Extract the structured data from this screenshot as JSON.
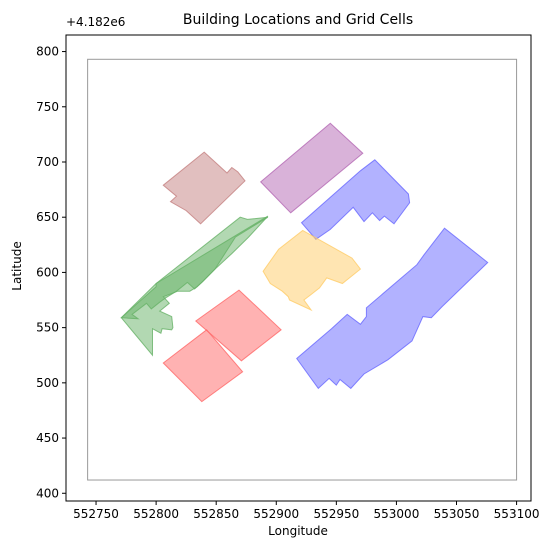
{
  "chart_data": {
    "type": "map",
    "title": "Building Locations and Grid Cells",
    "xlabel": "Longitude",
    "ylabel": "Latitude",
    "y_offset_label": "+4.182e6",
    "xlim": [
      552725,
      553112
    ],
    "ylim": [
      4182393,
      4182815
    ],
    "y_offset": 4182000,
    "x_ticks": [
      552750,
      552800,
      552850,
      552900,
      552950,
      553000,
      553050,
      553100
    ],
    "y_ticks": [
      400,
      450,
      500,
      550,
      600,
      650,
      700,
      750,
      800
    ],
    "grid_boundary": {
      "x": [
        552743,
        553100
      ],
      "y": [
        4182412,
        4182793
      ],
      "color": "#999999"
    },
    "buildings": [
      {
        "name": "green-building",
        "color": "#66b266",
        "polygon": [
          [
            552771,
            4182559
          ],
          [
            552800,
            4182587
          ],
          [
            552800,
            4182590
          ],
          [
            552893,
            4182651
          ],
          [
            552877,
            4182632
          ],
          [
            552863,
            4182617
          ],
          [
            552849,
            4182603
          ],
          [
            552838,
            4182591
          ],
          [
            552834,
            4182587
          ],
          [
            552828,
            4182583
          ],
          [
            552818,
            4182583
          ],
          [
            552806,
            4182578
          ],
          [
            552811,
            4182572
          ],
          [
            552803,
            4182565
          ],
          [
            552813,
            4182560
          ],
          [
            552814,
            4182550
          ],
          [
            552813,
            4182548
          ],
          [
            552805,
            4182549
          ],
          [
            552804,
            4182545
          ],
          [
            552797,
            4182549
          ],
          [
            552797,
            4182525
          ]
        ]
      },
      {
        "name": "green-building-right-edge",
        "color": "#66b266",
        "polygon": [
          [
            552800,
            4182590
          ],
          [
            552870,
            4182650
          ],
          [
            552876,
            4182648
          ],
          [
            552893,
            4182650
          ],
          [
            552866,
            4182632
          ],
          [
            552849,
            4182603
          ],
          [
            552839,
            4182592
          ],
          [
            552832,
            4182585
          ],
          [
            552826,
            4182591
          ],
          [
            552817,
            4182583
          ],
          [
            552808,
            4182577
          ],
          [
            552803,
            4182573
          ],
          [
            552796,
            4182567
          ],
          [
            552792,
            4182572
          ],
          [
            552780,
            4182562
          ],
          [
            552785,
            4182558
          ],
          [
            552771,
            4182559
          ]
        ]
      },
      {
        "name": "brown-building",
        "color": "#c48080",
        "polygon": [
          [
            552806,
            4182679
          ],
          [
            552840,
            4182709
          ],
          [
            552859,
            4182690
          ],
          [
            552863,
            4182695
          ],
          [
            552868,
            4182691
          ],
          [
            552874,
            4182683
          ],
          [
            552837,
            4182644
          ],
          [
            552825,
            4182656
          ],
          [
            552812,
            4182664
          ],
          [
            552817,
            4182669
          ]
        ]
      },
      {
        "name": "purple-building",
        "color": "#b366b3",
        "polygon": [
          [
            552887,
            4182682
          ],
          [
            552945,
            4182735
          ],
          [
            552972,
            4182708
          ],
          [
            552912,
            4182654
          ]
        ]
      },
      {
        "name": "blue-building-top",
        "color": "#6666ff",
        "polygon": [
          [
            552921,
            4182645
          ],
          [
            552970,
            4182692
          ],
          [
            552982,
            4182702
          ],
          [
            553010,
            4182671
          ],
          [
            553011,
            4182663
          ],
          [
            552998,
            4182644
          ],
          [
            552990,
            4182651
          ],
          [
            552986,
            4182647
          ],
          [
            552980,
            4182654
          ],
          [
            552973,
            4182646
          ],
          [
            552964,
            4182659
          ],
          [
            552945,
            4182639
          ],
          [
            552933,
            4182630
          ]
        ]
      },
      {
        "name": "orange-building",
        "color": "#ffcc66",
        "polygon": [
          [
            552889,
            4182601
          ],
          [
            552902,
            4182621
          ],
          [
            552922,
            4182638
          ],
          [
            552963,
            4182613
          ],
          [
            552970,
            4182603
          ],
          [
            552955,
            4182590
          ],
          [
            552942,
            4182595
          ],
          [
            552936,
            4182586
          ],
          [
            552929,
            4182580
          ],
          [
            552923,
            4182575
          ],
          [
            552929,
            4182566
          ],
          [
            552911,
            4182575
          ],
          [
            552910,
            4182578
          ],
          [
            552905,
            4182583
          ],
          [
            552895,
            4182590
          ]
        ]
      },
      {
        "name": "red-building-middle",
        "color": "#ff6666",
        "polygon": [
          [
            552833,
            4182556
          ],
          [
            552869,
            4182584
          ],
          [
            552904,
            4182548
          ],
          [
            552871,
            4182520
          ]
        ]
      },
      {
        "name": "red-building-bottom",
        "color": "#ff6666",
        "polygon": [
          [
            552806,
            4182518
          ],
          [
            552842,
            4182548
          ],
          [
            552872,
            4182510
          ],
          [
            552838,
            4182483
          ]
        ]
      },
      {
        "name": "blue-building-bottom",
        "color": "#6666ff",
        "polygon": [
          [
            552917,
            4182522
          ],
          [
            552946,
            4182549
          ],
          [
            552959,
            4182562
          ],
          [
            552970,
            4182553
          ],
          [
            552975,
            4182560
          ],
          [
            552975,
            4182568
          ],
          [
            553017,
            4182607
          ],
          [
            553023,
            4182616
          ],
          [
            553040,
            4182640
          ],
          [
            553076,
            4182609
          ],
          [
            553038,
            4182569
          ],
          [
            553029,
            4182559
          ],
          [
            553022,
            4182560
          ],
          [
            553013,
            4182538
          ],
          [
            552993,
            4182521
          ],
          [
            552973,
            4182508
          ],
          [
            552962,
            4182495
          ],
          [
            552953,
            4182503
          ],
          [
            552950,
            4182498
          ],
          [
            552944,
            4182504
          ],
          [
            552935,
            4182495
          ]
        ]
      }
    ]
  }
}
